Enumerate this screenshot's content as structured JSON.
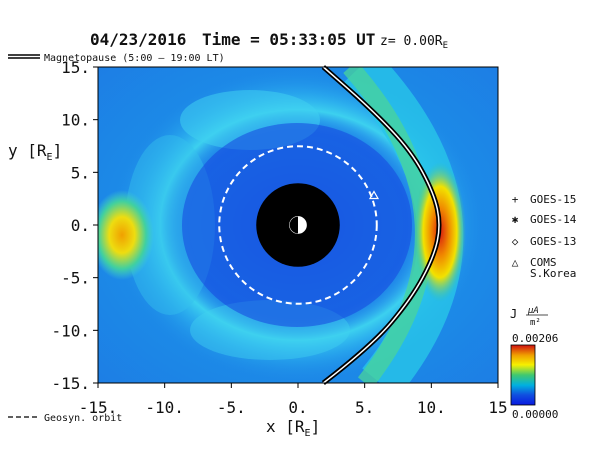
{
  "header": {
    "date": "04/23/2016",
    "time_label": "Time = 05:33:05 UT",
    "z_label": "z= 0.00R",
    "z_sub": "E"
  },
  "legend": {
    "magnetopause_label": "Magnetopause (5:00 – 19:00 LT)",
    "geosyn_label": "Geosyn. orbit",
    "satellites": [
      {
        "symbol": "+",
        "name": "GOES-15"
      },
      {
        "symbol": "✱",
        "name": "GOES-14"
      },
      {
        "symbol": "◇",
        "name": "GOES-13"
      },
      {
        "symbol": "△",
        "name": "COMS",
        "name2": "S.Korea"
      }
    ]
  },
  "colorbar": {
    "label_j": "J",
    "label_unit_num": "μA",
    "label_unit_den": "m²",
    "max_label": "0.00206",
    "min_label": "0.00000",
    "colors": [
      "#d01010",
      "#f0a000",
      "#f6f000",
      "#40c870",
      "#00b0e0",
      "#1050e0",
      "#0a1ae0"
    ]
  },
  "chart_data": {
    "type": "heatmap",
    "title": "04/23/2016 Time = 05:33:05 UT z= 0.00RE",
    "xlabel": "x [RE]",
    "ylabel": "y [RE]",
    "xlim": [
      -15,
      15
    ],
    "ylim": [
      -15,
      15
    ],
    "x_ticks": [
      -15,
      -10,
      -5,
      0,
      5,
      10,
      15
    ],
    "y_ticks": [
      15,
      10,
      5,
      0,
      -5,
      -10,
      -15
    ],
    "x_tick_labels": [
      "-15.",
      "-10.",
      "-5.",
      "0.",
      "5.",
      "10.",
      "15"
    ],
    "y_tick_labels": [
      "15.",
      "10.",
      "5.",
      "0.",
      "-5.",
      "-10.",
      "-15."
    ],
    "colorbar_range": [
      0.0,
      0.00206
    ],
    "geosynchronous_orbit_radius": 6.6,
    "inner_boundary_radius": 3.5,
    "earth_radius": 0.7,
    "magnetopause": {
      "subsolar_x": 10.7,
      "points": [
        [
          1.9,
          -15
        ],
        [
          5.5,
          -11.5
        ],
        [
          8.5,
          -7
        ],
        [
          10.2,
          -3
        ],
        [
          10.7,
          0
        ],
        [
          10.2,
          3
        ],
        [
          8.5,
          7
        ],
        [
          5.5,
          11
        ],
        [
          1.9,
          15
        ]
      ]
    },
    "satellites": [
      {
        "name": "COMS S.Korea",
        "x": 5.7,
        "y": 2.8
      }
    ]
  }
}
